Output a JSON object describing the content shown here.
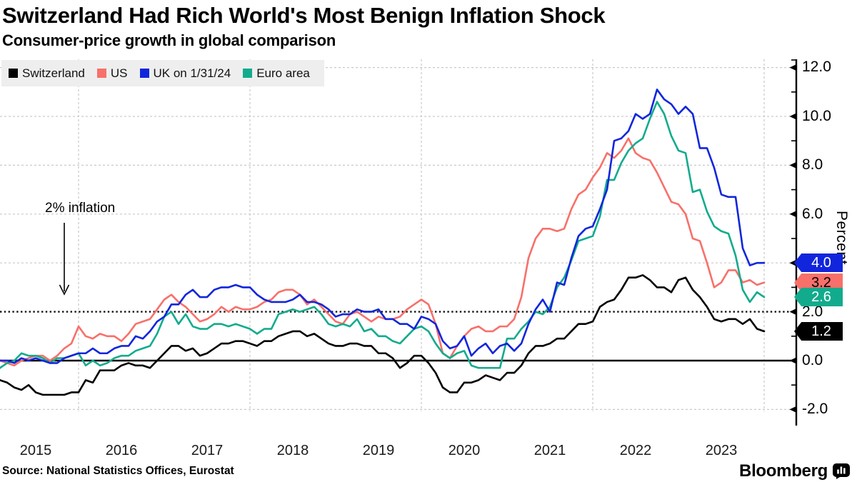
{
  "header": {
    "title": "Switzerland Had Rich World's Most Benign Inflation Shock",
    "subtitle": "Consumer-price growth in global comparison"
  },
  "annotation": {
    "text": "2% inflation"
  },
  "yaxis": {
    "axis_title": "Percent",
    "tick_labels": [
      "12.0",
      "10.0",
      "8.0",
      "6.0",
      "4.0",
      "2.0",
      "0.0",
      "-2.0"
    ]
  },
  "xaxis": {
    "year_labels": [
      "2015",
      "2016",
      "2017",
      "2018",
      "2019",
      "2020",
      "2021",
      "2022",
      "2023"
    ]
  },
  "end_labels": [
    {
      "value": "4.0",
      "color": "#1126DC",
      "text_color": "#ffffff"
    },
    {
      "value": "3.2",
      "color": "#F8706A",
      "text_color": "#000000"
    },
    {
      "value": "2.6",
      "color": "#12AB8D",
      "text_color": "#ffffff"
    },
    {
      "value": "1.2",
      "color": "#000000",
      "text_color": "#ffffff"
    }
  ],
  "footer": {
    "source": "Source: National Statistics Offices, Eurostat",
    "brand": "Bloomberg"
  },
  "chart_data": {
    "type": "line",
    "title": "Switzerland Had Rich World's Most Benign Inflation Shock",
    "subtitle": "Consumer-price growth in global comparison",
    "ylabel": "Percent",
    "x_unit": "monthly, Jan 2015 - Jan 2024",
    "ylim": [
      -3.0,
      12.4
    ],
    "y_major_ticks": [
      12,
      10,
      8,
      6,
      4,
      2,
      0,
      -2
    ],
    "y_minor_ticks": [
      11,
      9,
      7,
      5,
      3,
      1,
      -1
    ],
    "y_gridlines": [
      12,
      10,
      8,
      6,
      4,
      -2
    ],
    "x_gridline_years": [
      2016,
      2018,
      2020,
      2022,
      2024
    ],
    "reference_line": {
      "value": 2.0,
      "label": "2% inflation",
      "style": "black-dotted"
    },
    "zero_line": 0.0,
    "legend_position": "top-left",
    "series": [
      {
        "name": "Switzerland",
        "color": "#000000",
        "end_value": "1.2",
        "values": [
          -0.5,
          -0.8,
          -0.9,
          -1.1,
          -1.2,
          -1.0,
          -1.3,
          -1.4,
          -1.4,
          -1.4,
          -1.4,
          -1.3,
          -1.3,
          -0.8,
          -0.9,
          -0.4,
          -0.4,
          -0.4,
          -0.2,
          -0.1,
          -0.2,
          -0.2,
          -0.3,
          0.0,
          0.3,
          0.6,
          0.6,
          0.4,
          0.5,
          0.2,
          0.3,
          0.5,
          0.7,
          0.7,
          0.8,
          0.8,
          0.7,
          0.6,
          0.8,
          0.8,
          1.0,
          1.1,
          1.2,
          1.2,
          1.0,
          1.1,
          0.9,
          0.7,
          0.6,
          0.6,
          0.7,
          0.7,
          0.6,
          0.6,
          0.3,
          0.3,
          0.1,
          -0.3,
          -0.1,
          0.2,
          0.2,
          -0.1,
          -0.5,
          -1.1,
          -1.3,
          -1.3,
          -0.9,
          -0.9,
          -0.8,
          -0.6,
          -0.7,
          -0.8,
          -0.5,
          -0.5,
          -0.2,
          0.3,
          0.6,
          0.6,
          0.7,
          0.9,
          0.9,
          1.2,
          1.5,
          1.5,
          1.6,
          2.2,
          2.4,
          2.5,
          2.9,
          3.4,
          3.4,
          3.5,
          3.3,
          3.0,
          3.0,
          2.8,
          3.3,
          3.4,
          2.9,
          2.6,
          2.2,
          1.7,
          1.6,
          1.7,
          1.7,
          1.5,
          1.7,
          1.3,
          1.2
        ]
      },
      {
        "name": "US",
        "color": "#F8706A",
        "end_value": "3.2",
        "values": [
          -0.1,
          0.0,
          -0.1,
          -0.2,
          0.0,
          0.1,
          0.2,
          0.2,
          0.0,
          0.2,
          0.5,
          0.7,
          1.4,
          1.0,
          0.9,
          1.1,
          1.0,
          1.0,
          0.8,
          1.1,
          1.5,
          1.6,
          1.7,
          2.1,
          2.5,
          2.7,
          2.4,
          2.2,
          1.9,
          1.6,
          1.7,
          1.9,
          2.2,
          2.0,
          2.2,
          2.1,
          2.1,
          2.2,
          2.4,
          2.5,
          2.8,
          2.9,
          2.9,
          2.7,
          2.3,
          2.5,
          2.2,
          1.9,
          1.6,
          1.5,
          1.9,
          2.0,
          1.8,
          1.6,
          1.8,
          1.7,
          1.7,
          1.8,
          2.1,
          2.3,
          2.5,
          2.3,
          1.5,
          0.3,
          0.1,
          0.6,
          1.0,
          1.3,
          1.4,
          1.2,
          1.2,
          1.4,
          1.4,
          1.7,
          2.6,
          4.2,
          5.0,
          5.4,
          5.4,
          5.3,
          5.4,
          6.2,
          6.8,
          7.0,
          7.5,
          7.9,
          8.5,
          8.3,
          8.6,
          9.1,
          8.5,
          8.3,
          8.2,
          7.7,
          7.1,
          6.5,
          6.4,
          6.0,
          5.0,
          4.9,
          4.0,
          3.0,
          3.2,
          3.7,
          3.7,
          3.2,
          3.3,
          3.1,
          3.2
        ]
      },
      {
        "name": "UK on 1/31/24",
        "color": "#1126DC",
        "end_value": "4.0",
        "values": [
          0.3,
          0.0,
          0.0,
          -0.1,
          0.1,
          0.0,
          0.1,
          0.0,
          -0.1,
          -0.1,
          0.1,
          0.2,
          0.3,
          0.3,
          0.5,
          0.3,
          0.3,
          0.5,
          0.6,
          0.6,
          1.0,
          0.9,
          1.2,
          1.6,
          1.8,
          2.3,
          2.3,
          2.7,
          2.9,
          2.6,
          2.6,
          2.9,
          3.0,
          3.0,
          3.1,
          3.0,
          3.0,
          2.7,
          2.5,
          2.4,
          2.4,
          2.4,
          2.5,
          2.7,
          2.4,
          2.4,
          2.3,
          2.1,
          1.8,
          1.9,
          1.9,
          2.1,
          2.0,
          2.0,
          2.1,
          1.7,
          1.7,
          1.5,
          1.5,
          1.3,
          1.8,
          1.7,
          1.5,
          0.8,
          0.5,
          0.6,
          1.0,
          0.2,
          0.5,
          0.7,
          0.3,
          0.6,
          0.7,
          0.4,
          0.7,
          1.5,
          2.1,
          2.5,
          2.0,
          3.2,
          3.1,
          4.2,
          5.1,
          5.4,
          5.5,
          6.2,
          7.0,
          9.0,
          9.1,
          9.4,
          10.1,
          9.9,
          10.1,
          11.1,
          10.7,
          10.5,
          10.1,
          10.4,
          10.1,
          8.7,
          8.7,
          7.9,
          6.8,
          6.7,
          6.7,
          4.6,
          3.9,
          4.0,
          4.0
        ]
      },
      {
        "name": "Euro area",
        "color": "#12AB8D",
        "end_value": "2.6",
        "values": [
          -0.6,
          -0.3,
          -0.1,
          0.0,
          0.3,
          0.2,
          0.2,
          0.1,
          -0.1,
          0.1,
          0.1,
          0.2,
          0.3,
          -0.2,
          0.0,
          -0.2,
          -0.1,
          0.1,
          0.2,
          0.2,
          0.4,
          0.5,
          0.6,
          1.1,
          1.8,
          2.0,
          1.5,
          1.9,
          1.4,
          1.3,
          1.3,
          1.5,
          1.5,
          1.4,
          1.5,
          1.4,
          1.3,
          1.1,
          1.3,
          1.3,
          1.9,
          2.0,
          2.1,
          2.0,
          2.1,
          2.2,
          1.9,
          1.5,
          1.4,
          1.5,
          1.4,
          1.7,
          1.2,
          1.3,
          1.0,
          1.0,
          0.8,
          0.7,
          1.0,
          1.3,
          1.4,
          1.2,
          0.7,
          0.3,
          0.1,
          0.3,
          0.4,
          -0.2,
          -0.3,
          -0.3,
          -0.3,
          -0.3,
          0.9,
          0.9,
          1.3,
          1.6,
          2.0,
          1.9,
          2.2,
          3.0,
          3.4,
          4.1,
          4.9,
          5.0,
          5.1,
          5.9,
          7.4,
          7.4,
          8.1,
          8.6,
          8.9,
          9.1,
          9.9,
          10.6,
          10.1,
          9.2,
          8.6,
          8.5,
          6.9,
          7.0,
          6.1,
          5.5,
          5.3,
          5.2,
          4.3,
          2.9,
          2.4,
          2.8,
          2.6
        ]
      }
    ]
  }
}
